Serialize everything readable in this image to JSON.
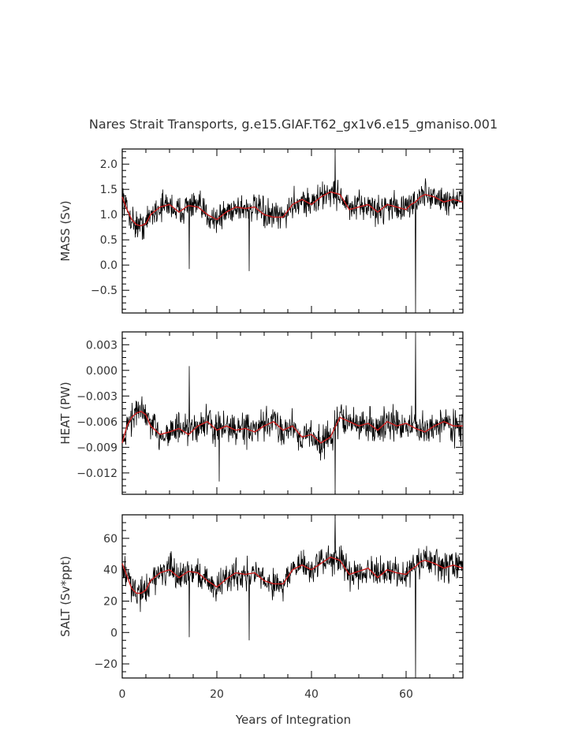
{
  "chart_data": {
    "title": "Nares Strait Transports, g.e15.GIAF.T62_gx1v6.e15_gmaniso.001",
    "type": "line",
    "xlabel": "Years of Integration",
    "xlim": [
      0,
      72
    ],
    "xticks": [
      0,
      20,
      40,
      60
    ],
    "xtick_labels": [
      "0",
      "20",
      "40",
      "60"
    ],
    "series_colors": {
      "monthly": "#000000",
      "smoothed": "#cc1f1f"
    },
    "panels": [
      {
        "name": "mass",
        "ylabel": "MASS (Sv)",
        "ylim": [
          -0.95,
          2.3
        ],
        "yticks": [
          -0.5,
          0.0,
          0.5,
          1.0,
          1.5,
          2.0
        ],
        "ytick_labels": [
          "−0.5",
          "0.0",
          "0.5",
          "1.0",
          "1.5",
          "2.0"
        ],
        "smoothed": {
          "x": [
            0,
            1,
            2,
            3,
            4,
            5,
            6,
            8,
            10,
            12,
            14,
            16,
            18,
            20,
            22,
            24,
            26,
            28,
            30,
            32,
            34,
            36,
            38,
            40,
            42,
            44,
            46,
            48,
            50,
            52,
            54,
            56,
            58,
            60,
            61,
            62,
            63,
            64,
            66,
            68,
            70,
            72
          ],
          "y": [
            1.35,
            1.1,
            0.9,
            0.8,
            0.78,
            0.82,
            1.0,
            1.15,
            1.2,
            1.05,
            1.18,
            1.15,
            1.0,
            0.9,
            1.05,
            1.15,
            1.12,
            1.15,
            1.0,
            0.95,
            0.95,
            1.2,
            1.3,
            1.2,
            1.35,
            1.45,
            1.4,
            1.1,
            1.15,
            1.2,
            1.05,
            1.2,
            1.15,
            1.1,
            1.2,
            1.25,
            1.35,
            1.4,
            1.35,
            1.25,
            1.3,
            1.25
          ]
        },
        "raw_mean": 1.15,
        "raw_amp": 0.42,
        "spikes": [
          {
            "x": 14.2,
            "y": -0.08
          },
          {
            "x": 26.8,
            "y": -0.12
          },
          {
            "x": 45.0,
            "y": 2.3
          },
          {
            "x": 62.0,
            "y": -0.95
          }
        ]
      },
      {
        "name": "heat",
        "ylabel": "HEAT (PW)",
        "ylim": [
          -0.0145,
          0.0045
        ],
        "yticks": [
          -0.012,
          -0.009,
          -0.006,
          -0.003,
          0.0,
          0.003
        ],
        "ytick_labels": [
          "−0.012",
          "−0.009",
          "−0.006",
          "−0.003",
          "0.000",
          "0.003"
        ],
        "smoothed": {
          "x": [
            0,
            1,
            2,
            3,
            4,
            5,
            6,
            8,
            10,
            12,
            14,
            16,
            18,
            20,
            22,
            24,
            26,
            28,
            30,
            32,
            34,
            36,
            38,
            40,
            42,
            44,
            46,
            48,
            50,
            52,
            54,
            56,
            58,
            60,
            62,
            64,
            66,
            68,
            70,
            72
          ],
          "y": [
            -0.0085,
            -0.0065,
            -0.0055,
            -0.005,
            -0.0048,
            -0.0052,
            -0.0065,
            -0.0075,
            -0.0072,
            -0.0068,
            -0.0075,
            -0.0065,
            -0.006,
            -0.007,
            -0.0065,
            -0.007,
            -0.0068,
            -0.0072,
            -0.0065,
            -0.006,
            -0.007,
            -0.0065,
            -0.0078,
            -0.0075,
            -0.0085,
            -0.0078,
            -0.0055,
            -0.006,
            -0.0065,
            -0.0062,
            -0.007,
            -0.006,
            -0.0065,
            -0.0062,
            -0.0068,
            -0.0072,
            -0.0065,
            -0.006,
            -0.0065,
            -0.0065
          ]
        },
        "raw_mean": -0.0068,
        "raw_amp": 0.0028,
        "spikes": [
          {
            "x": 14.2,
            "y": 0.0005
          },
          {
            "x": 20.5,
            "y": -0.013
          },
          {
            "x": 45.0,
            "y": -0.0145
          },
          {
            "x": 62.0,
            "y": 0.0045
          }
        ]
      },
      {
        "name": "salt",
        "ylabel": "SALT (Sv*ppt)",
        "ylim": [
          -29,
          75
        ],
        "yticks": [
          -20,
          0,
          20,
          40,
          60
        ],
        "ytick_labels": [
          "−20",
          "0",
          "20",
          "40",
          "60"
        ],
        "smoothed": {
          "x": [
            0,
            1,
            2,
            3,
            4,
            5,
            6,
            8,
            10,
            12,
            14,
            16,
            18,
            20,
            22,
            24,
            26,
            28,
            30,
            32,
            34,
            36,
            38,
            40,
            42,
            44,
            46,
            48,
            50,
            52,
            54,
            56,
            58,
            60,
            61,
            62,
            63,
            64,
            66,
            68,
            70,
            72
          ],
          "y": [
            44,
            36,
            28,
            25,
            25,
            27,
            33,
            38,
            40,
            35,
            39,
            38,
            33,
            29,
            34,
            38,
            37,
            38,
            33,
            31,
            31,
            40,
            43,
            40,
            44,
            48,
            46,
            37,
            39,
            41,
            35,
            40,
            38,
            37,
            40,
            42,
            45,
            46,
            44,
            41,
            43,
            41
          ]
        },
        "raw_mean": 38,
        "raw_amp": 14,
        "spikes": [
          {
            "x": 14.2,
            "y": -3
          },
          {
            "x": 26.8,
            "y": -5
          },
          {
            "x": 45.0,
            "y": 75
          },
          {
            "x": 62.0,
            "y": -29
          }
        ]
      }
    ]
  }
}
